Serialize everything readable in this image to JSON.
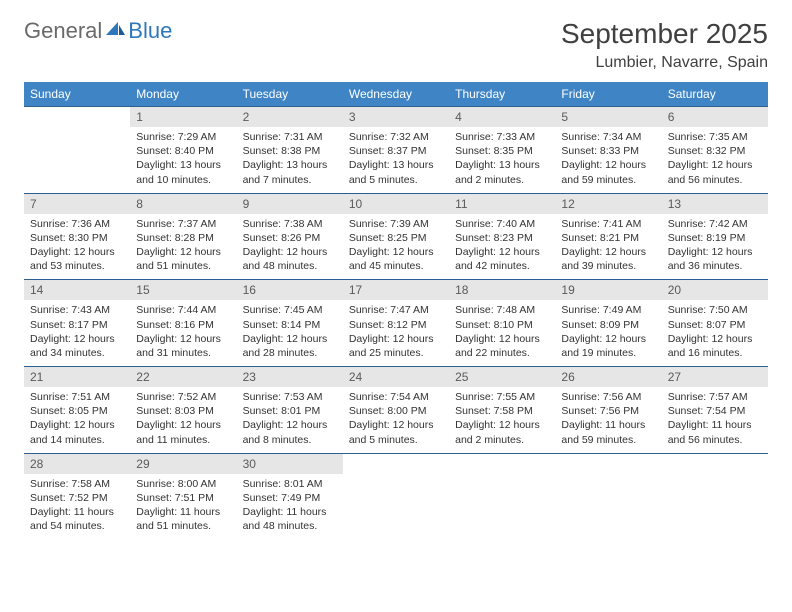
{
  "logo": {
    "general": "General",
    "blue": "Blue"
  },
  "title": "September 2025",
  "location": "Lumbier, Navarre, Spain",
  "colors": {
    "header_bg": "#3f85c6",
    "header_text": "#ffffff",
    "daynum_bg": "#e6e6e6",
    "border": "#2d5f93",
    "logo_blue": "#2f77bb",
    "logo_gray": "#6a6a6a"
  },
  "dayNames": [
    "Sunday",
    "Monday",
    "Tuesday",
    "Wednesday",
    "Thursday",
    "Friday",
    "Saturday"
  ],
  "weeks": [
    [
      {
        "empty": true
      },
      {
        "n": "1",
        "sr": "Sunrise: 7:29 AM",
        "ss": "Sunset: 8:40 PM",
        "dl": "Daylight: 13 hours and 10 minutes."
      },
      {
        "n": "2",
        "sr": "Sunrise: 7:31 AM",
        "ss": "Sunset: 8:38 PM",
        "dl": "Daylight: 13 hours and 7 minutes."
      },
      {
        "n": "3",
        "sr": "Sunrise: 7:32 AM",
        "ss": "Sunset: 8:37 PM",
        "dl": "Daylight: 13 hours and 5 minutes."
      },
      {
        "n": "4",
        "sr": "Sunrise: 7:33 AM",
        "ss": "Sunset: 8:35 PM",
        "dl": "Daylight: 13 hours and 2 minutes."
      },
      {
        "n": "5",
        "sr": "Sunrise: 7:34 AM",
        "ss": "Sunset: 8:33 PM",
        "dl": "Daylight: 12 hours and 59 minutes."
      },
      {
        "n": "6",
        "sr": "Sunrise: 7:35 AM",
        "ss": "Sunset: 8:32 PM",
        "dl": "Daylight: 12 hours and 56 minutes."
      }
    ],
    [
      {
        "n": "7",
        "sr": "Sunrise: 7:36 AM",
        "ss": "Sunset: 8:30 PM",
        "dl": "Daylight: 12 hours and 53 minutes."
      },
      {
        "n": "8",
        "sr": "Sunrise: 7:37 AM",
        "ss": "Sunset: 8:28 PM",
        "dl": "Daylight: 12 hours and 51 minutes."
      },
      {
        "n": "9",
        "sr": "Sunrise: 7:38 AM",
        "ss": "Sunset: 8:26 PM",
        "dl": "Daylight: 12 hours and 48 minutes."
      },
      {
        "n": "10",
        "sr": "Sunrise: 7:39 AM",
        "ss": "Sunset: 8:25 PM",
        "dl": "Daylight: 12 hours and 45 minutes."
      },
      {
        "n": "11",
        "sr": "Sunrise: 7:40 AM",
        "ss": "Sunset: 8:23 PM",
        "dl": "Daylight: 12 hours and 42 minutes."
      },
      {
        "n": "12",
        "sr": "Sunrise: 7:41 AM",
        "ss": "Sunset: 8:21 PM",
        "dl": "Daylight: 12 hours and 39 minutes."
      },
      {
        "n": "13",
        "sr": "Sunrise: 7:42 AM",
        "ss": "Sunset: 8:19 PM",
        "dl": "Daylight: 12 hours and 36 minutes."
      }
    ],
    [
      {
        "n": "14",
        "sr": "Sunrise: 7:43 AM",
        "ss": "Sunset: 8:17 PM",
        "dl": "Daylight: 12 hours and 34 minutes."
      },
      {
        "n": "15",
        "sr": "Sunrise: 7:44 AM",
        "ss": "Sunset: 8:16 PM",
        "dl": "Daylight: 12 hours and 31 minutes."
      },
      {
        "n": "16",
        "sr": "Sunrise: 7:45 AM",
        "ss": "Sunset: 8:14 PM",
        "dl": "Daylight: 12 hours and 28 minutes."
      },
      {
        "n": "17",
        "sr": "Sunrise: 7:47 AM",
        "ss": "Sunset: 8:12 PM",
        "dl": "Daylight: 12 hours and 25 minutes."
      },
      {
        "n": "18",
        "sr": "Sunrise: 7:48 AM",
        "ss": "Sunset: 8:10 PM",
        "dl": "Daylight: 12 hours and 22 minutes."
      },
      {
        "n": "19",
        "sr": "Sunrise: 7:49 AM",
        "ss": "Sunset: 8:09 PM",
        "dl": "Daylight: 12 hours and 19 minutes."
      },
      {
        "n": "20",
        "sr": "Sunrise: 7:50 AM",
        "ss": "Sunset: 8:07 PM",
        "dl": "Daylight: 12 hours and 16 minutes."
      }
    ],
    [
      {
        "n": "21",
        "sr": "Sunrise: 7:51 AM",
        "ss": "Sunset: 8:05 PM",
        "dl": "Daylight: 12 hours and 14 minutes."
      },
      {
        "n": "22",
        "sr": "Sunrise: 7:52 AM",
        "ss": "Sunset: 8:03 PM",
        "dl": "Daylight: 12 hours and 11 minutes."
      },
      {
        "n": "23",
        "sr": "Sunrise: 7:53 AM",
        "ss": "Sunset: 8:01 PM",
        "dl": "Daylight: 12 hours and 8 minutes."
      },
      {
        "n": "24",
        "sr": "Sunrise: 7:54 AM",
        "ss": "Sunset: 8:00 PM",
        "dl": "Daylight: 12 hours and 5 minutes."
      },
      {
        "n": "25",
        "sr": "Sunrise: 7:55 AM",
        "ss": "Sunset: 7:58 PM",
        "dl": "Daylight: 12 hours and 2 minutes."
      },
      {
        "n": "26",
        "sr": "Sunrise: 7:56 AM",
        "ss": "Sunset: 7:56 PM",
        "dl": "Daylight: 11 hours and 59 minutes."
      },
      {
        "n": "27",
        "sr": "Sunrise: 7:57 AM",
        "ss": "Sunset: 7:54 PM",
        "dl": "Daylight: 11 hours and 56 minutes."
      }
    ],
    [
      {
        "n": "28",
        "sr": "Sunrise: 7:58 AM",
        "ss": "Sunset: 7:52 PM",
        "dl": "Daylight: 11 hours and 54 minutes."
      },
      {
        "n": "29",
        "sr": "Sunrise: 8:00 AM",
        "ss": "Sunset: 7:51 PM",
        "dl": "Daylight: 11 hours and 51 minutes."
      },
      {
        "n": "30",
        "sr": "Sunrise: 8:01 AM",
        "ss": "Sunset: 7:49 PM",
        "dl": "Daylight: 11 hours and 48 minutes."
      },
      {
        "empty": true
      },
      {
        "empty": true
      },
      {
        "empty": true
      },
      {
        "empty": true
      }
    ]
  ]
}
